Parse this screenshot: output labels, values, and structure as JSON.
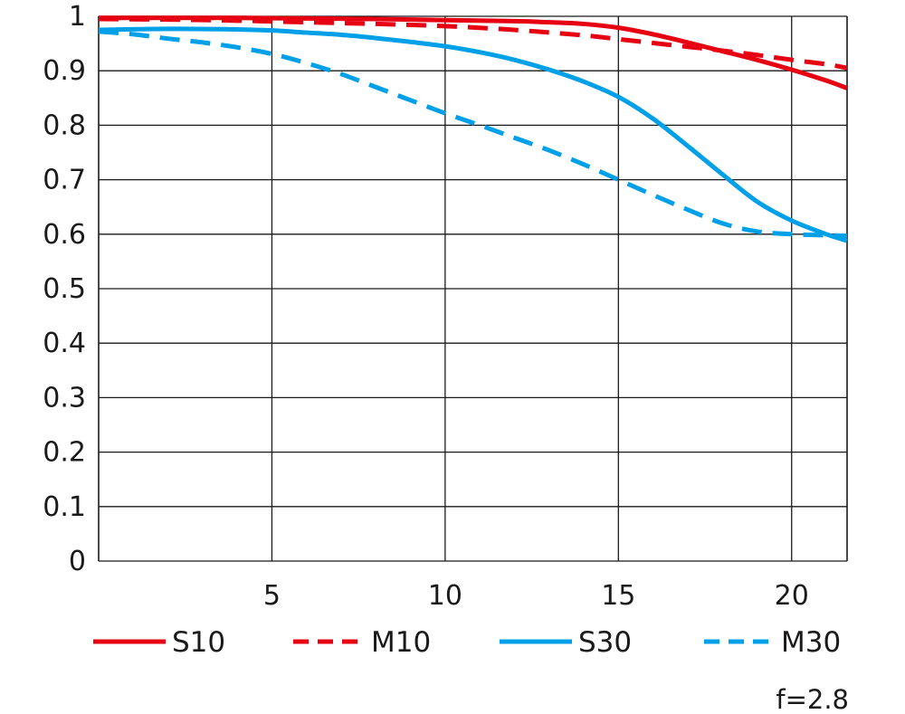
{
  "chart_data": {
    "type": "line",
    "title": "",
    "xlabel": "",
    "ylabel": "",
    "xlim": [
      0,
      21.6
    ],
    "ylim": [
      0,
      1
    ],
    "grid": true,
    "legend_position": "bottom",
    "x_ticks": [
      "5",
      "10",
      "15",
      "20"
    ],
    "y_ticks": [
      "0",
      "0.1",
      "0.2",
      "0.3",
      "0.4",
      "0.5",
      "0.6",
      "0.7",
      "0.8",
      "0.9",
      "1"
    ],
    "annotation": "f=2.8",
    "series": [
      {
        "name": "S10",
        "color": "#e60012",
        "style": "solid",
        "x": [
          0,
          2,
          4,
          6,
          8,
          10,
          12,
          13,
          14,
          15,
          16,
          17,
          18,
          19,
          20,
          21,
          21.6
        ],
        "y": [
          0.997,
          0.997,
          0.997,
          0.996,
          0.995,
          0.993,
          0.991,
          0.989,
          0.986,
          0.979,
          0.967,
          0.952,
          0.936,
          0.92,
          0.902,
          0.882,
          0.868
        ]
      },
      {
        "name": "M10",
        "color": "#e60012",
        "style": "dashed",
        "x": [
          0,
          2,
          4,
          6,
          8,
          10,
          12,
          14,
          15,
          16,
          17,
          18,
          19,
          20,
          21,
          21.6
        ],
        "y": [
          0.995,
          0.994,
          0.992,
          0.989,
          0.986,
          0.982,
          0.975,
          0.965,
          0.958,
          0.951,
          0.944,
          0.937,
          0.929,
          0.92,
          0.912,
          0.905
        ]
      },
      {
        "name": "S30",
        "color": "#00a0e9",
        "style": "solid",
        "x": [
          0,
          2,
          4,
          5,
          6,
          7,
          8,
          9,
          10,
          11,
          12,
          13,
          14,
          15,
          16,
          17,
          18,
          19,
          20,
          21,
          21.6
        ],
        "y": [
          0.975,
          0.977,
          0.976,
          0.974,
          0.97,
          0.966,
          0.96,
          0.953,
          0.945,
          0.934,
          0.92,
          0.902,
          0.88,
          0.852,
          0.812,
          0.762,
          0.71,
          0.66,
          0.625,
          0.6,
          0.588
        ]
      },
      {
        "name": "M30",
        "color": "#00a0e9",
        "style": "dashed",
        "x": [
          0,
          1,
          2,
          3,
          4,
          5,
          6,
          7,
          8,
          9,
          10,
          11,
          12,
          13,
          14,
          15,
          16,
          17,
          18,
          19,
          20,
          21,
          21.6
        ],
        "y": [
          0.972,
          0.967,
          0.959,
          0.952,
          0.943,
          0.931,
          0.914,
          0.894,
          0.87,
          0.846,
          0.822,
          0.8,
          0.777,
          0.754,
          0.728,
          0.7,
          0.672,
          0.645,
          0.62,
          0.605,
          0.6,
          0.598,
          0.597
        ]
      }
    ]
  }
}
